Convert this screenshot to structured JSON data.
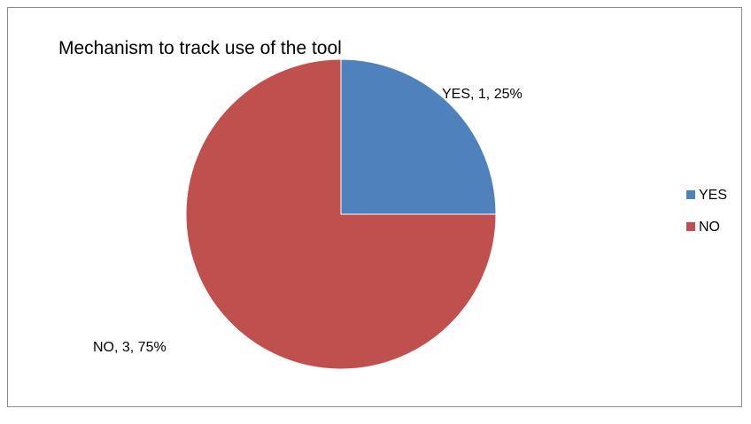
{
  "chart_data": {
    "type": "pie",
    "title": "Mechanism to track use of the tool",
    "categories": [
      "YES",
      "NO"
    ],
    "values": [
      1,
      3
    ],
    "percentages": [
      "25%",
      "75%"
    ],
    "data_labels": [
      "YES, 1, 25%",
      "NO, 3, 75%"
    ],
    "colors": [
      "#4F81BD",
      "#C0504D"
    ],
    "legend": {
      "position": "right",
      "entries": [
        "YES",
        "NO"
      ]
    },
    "start_angle_deg": 0,
    "direction": "clockwise"
  }
}
